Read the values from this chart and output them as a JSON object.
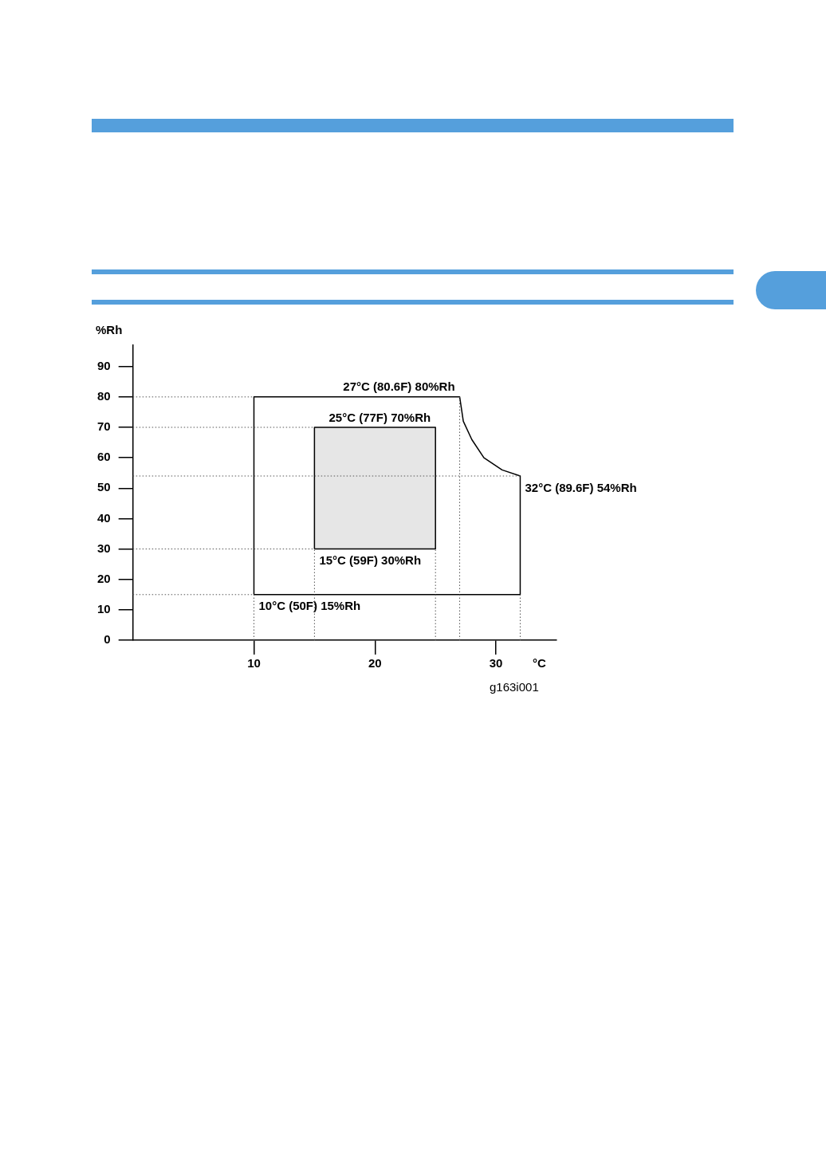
{
  "chart_data": {
    "type": "line",
    "xlabel": "°C",
    "ylabel": "%Rh",
    "xlim": [
      0,
      35
    ],
    "ylim": [
      0,
      97
    ],
    "xticks": [
      10,
      20,
      30
    ],
    "yticks": [
      0,
      10,
      20,
      30,
      40,
      50,
      60,
      70,
      80,
      90
    ],
    "grid": false,
    "legend": false,
    "marker": "none",
    "series": [
      {
        "type": "line",
        "color": "#000000",
        "x": [
          10,
          10,
          27,
          27.3,
          28,
          29,
          30.5,
          32,
          32
        ],
        "values": [
          15,
          80,
          80,
          72,
          66,
          60,
          56,
          54,
          15
        ]
      },
      {
        "type": "line",
        "color": "#000000",
        "x": [
          10,
          32
        ],
        "values": [
          15,
          15
        ]
      },
      {
        "type": "area",
        "color": "#e6e6e6",
        "x": [
          15,
          15,
          25,
          25,
          15
        ],
        "values": [
          30,
          70,
          70,
          30,
          30
        ]
      }
    ],
    "ref_lines": [
      {
        "axis": "y",
        "value": 80,
        "line_style": "dotted",
        "color": "#555555"
      },
      {
        "axis": "y",
        "value": 70,
        "line_style": "dotted",
        "color": "#555555"
      },
      {
        "axis": "y",
        "value": 54,
        "line_style": "dotted",
        "color": "#555555"
      },
      {
        "axis": "y",
        "value": 30,
        "line_style": "dotted",
        "color": "#555555"
      },
      {
        "axis": "y",
        "value": 15,
        "line_style": "dotted",
        "color": "#555555"
      },
      {
        "axis": "x",
        "value": 10,
        "line_style": "dotted",
        "color": "#555555"
      },
      {
        "axis": "x",
        "value": 15,
        "line_style": "dotted",
        "color": "#555555"
      },
      {
        "axis": "x",
        "value": 25,
        "line_style": "dotted",
        "color": "#555555"
      },
      {
        "axis": "x",
        "value": 27,
        "line_style": "dotted",
        "color": "#555555"
      },
      {
        "axis": "x",
        "value": 32,
        "line_style": "dotted",
        "color": "#555555"
      }
    ],
    "annotations": [
      {
        "text": "10°C (50F) 15%Rh",
        "x": 10,
        "y": 15
      },
      {
        "text": "15°C (59F) 30%Rh",
        "x": 15,
        "y": 30
      },
      {
        "text": "25°C (77F) 70%Rh",
        "x": 25,
        "y": 70
      },
      {
        "text": "27°C (80.6F) 80%Rh",
        "x": 27,
        "y": 80
      },
      {
        "text": "32°C (89.6F) 54%Rh",
        "x": 32,
        "y": 54
      },
      "g163i001"
    ]
  }
}
